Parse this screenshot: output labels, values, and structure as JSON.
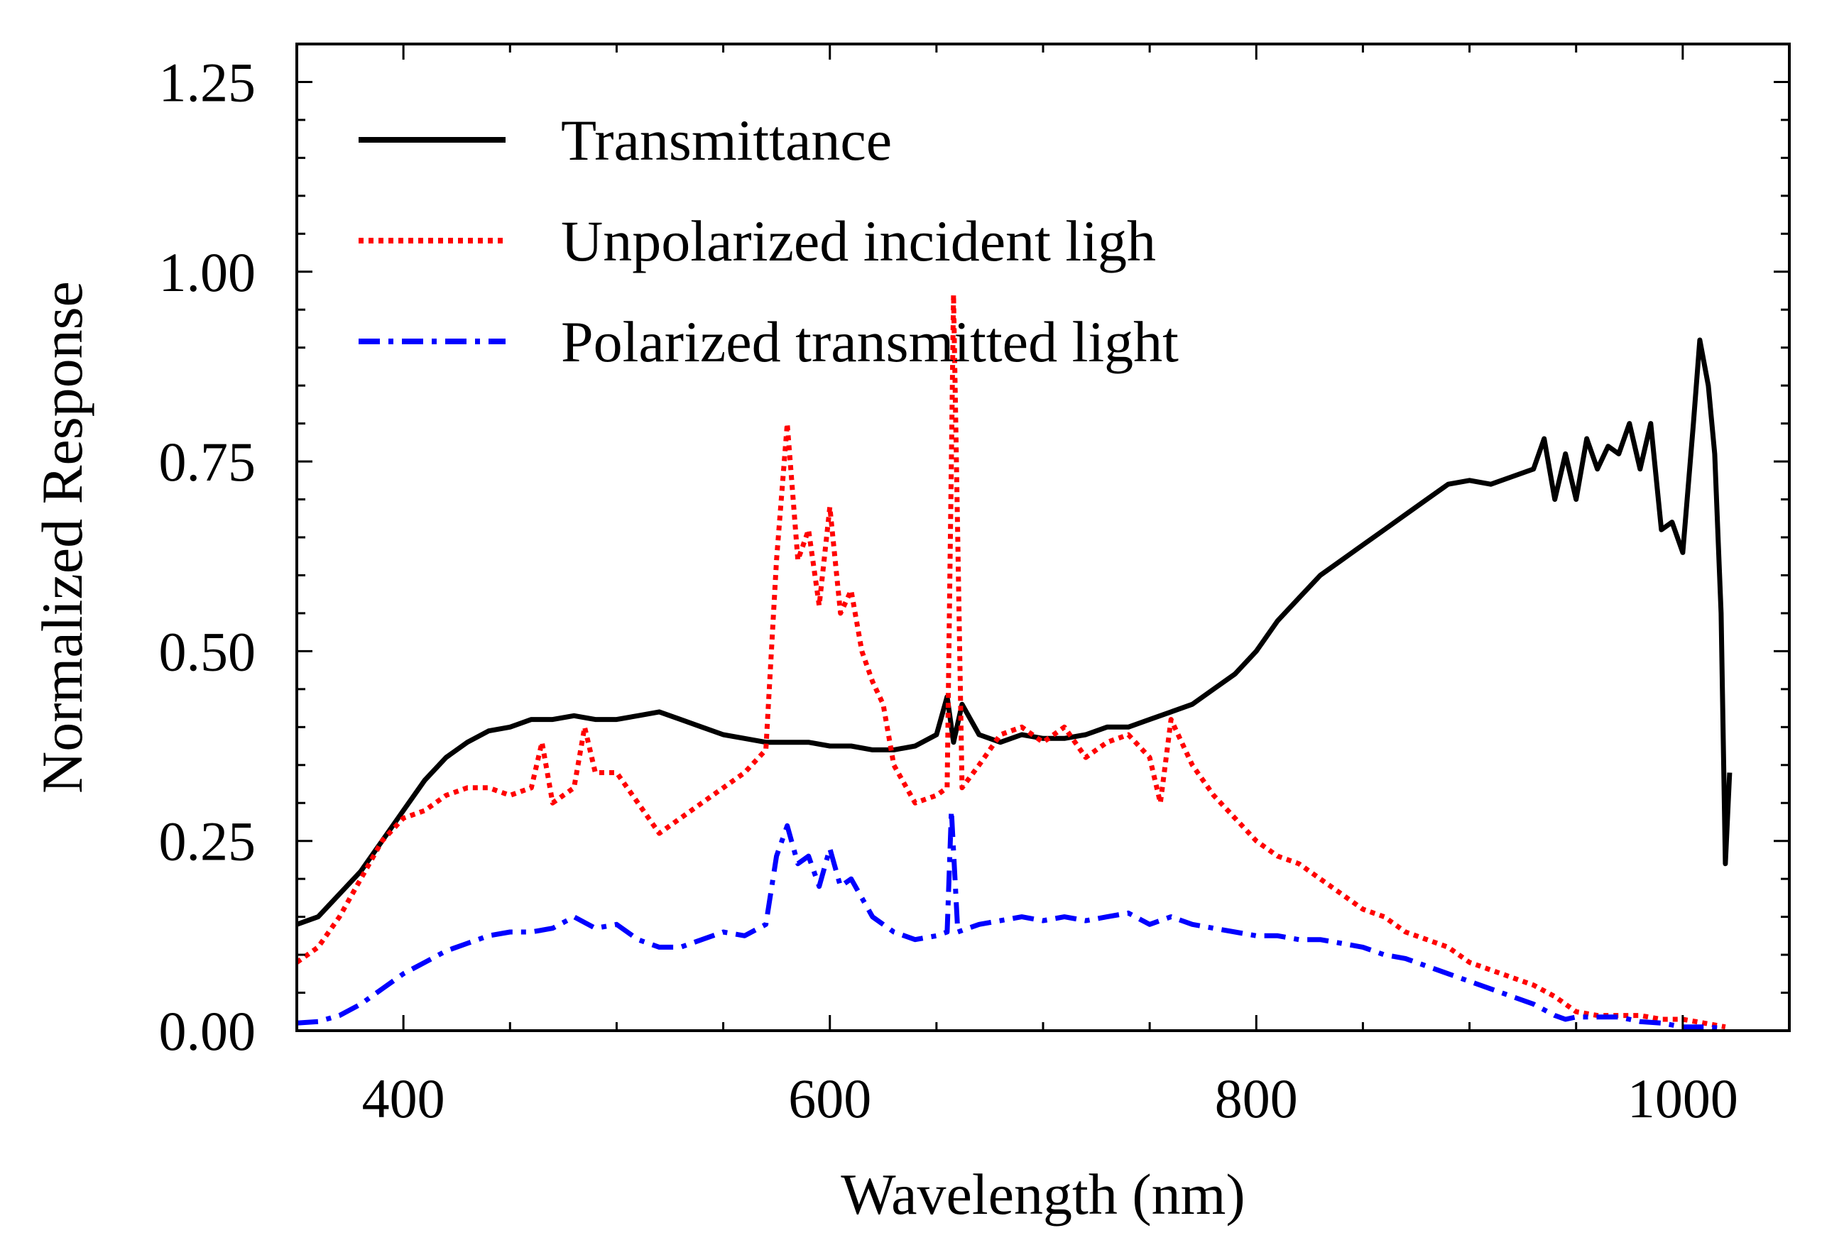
{
  "chart_data": {
    "type": "line",
    "title": "",
    "xlabel": "Wavelength (nm)",
    "ylabel": "Normalized Response",
    "xlim": [
      350,
      1050
    ],
    "ylim": [
      0,
      1.3
    ],
    "xticks": [
      400,
      600,
      800,
      1000
    ],
    "xtick_labels": [
      "400",
      "600",
      "800",
      "1000"
    ],
    "yticks": [
      0,
      0.25,
      0.5,
      0.75,
      1.0,
      1.25
    ],
    "ytick_labels": [
      "0.00",
      "0.25",
      "0.50",
      "0.75",
      "1.00",
      "1.25"
    ],
    "legend_position": "top-left",
    "grid": false,
    "series": [
      {
        "name": "Transmittance",
        "color": "#000000",
        "style": "solid",
        "x": [
          350,
          360,
          370,
          380,
          390,
          400,
          410,
          420,
          430,
          440,
          450,
          460,
          470,
          480,
          490,
          500,
          510,
          520,
          530,
          540,
          550,
          560,
          570,
          580,
          590,
          600,
          610,
          620,
          630,
          640,
          650,
          655,
          658,
          662,
          670,
          680,
          690,
          700,
          710,
          720,
          730,
          740,
          750,
          760,
          770,
          780,
          790,
          800,
          810,
          820,
          830,
          840,
          850,
          860,
          870,
          880,
          890,
          900,
          910,
          920,
          930,
          935,
          940,
          945,
          950,
          955,
          960,
          965,
          970,
          975,
          980,
          985,
          990,
          995,
          1000,
          1005,
          1008,
          1012,
          1015,
          1018,
          1020,
          1022
        ],
        "values": [
          0.14,
          0.15,
          0.18,
          0.21,
          0.25,
          0.29,
          0.33,
          0.36,
          0.38,
          0.395,
          0.4,
          0.41,
          0.41,
          0.415,
          0.41,
          0.41,
          0.415,
          0.42,
          0.41,
          0.4,
          0.39,
          0.385,
          0.38,
          0.38,
          0.38,
          0.375,
          0.375,
          0.37,
          0.37,
          0.375,
          0.39,
          0.44,
          0.38,
          0.43,
          0.39,
          0.38,
          0.39,
          0.385,
          0.385,
          0.39,
          0.4,
          0.4,
          0.41,
          0.42,
          0.43,
          0.45,
          0.47,
          0.5,
          0.54,
          0.57,
          0.6,
          0.62,
          0.64,
          0.66,
          0.68,
          0.7,
          0.72,
          0.725,
          0.72,
          0.73,
          0.74,
          0.78,
          0.7,
          0.76,
          0.7,
          0.78,
          0.74,
          0.77,
          0.76,
          0.8,
          0.74,
          0.8,
          0.66,
          0.67,
          0.63,
          0.8,
          0.91,
          0.85,
          0.76,
          0.55,
          0.22,
          0.34
        ]
      },
      {
        "name": "Unpolarized incident ligh",
        "color": "#ff0000",
        "style": "dotted",
        "x": [
          350,
          360,
          370,
          380,
          390,
          400,
          410,
          420,
          430,
          440,
          450,
          460,
          465,
          470,
          480,
          485,
          490,
          500,
          510,
          520,
          530,
          540,
          550,
          560,
          570,
          575,
          580,
          585,
          590,
          595,
          600,
          605,
          610,
          615,
          620,
          625,
          630,
          640,
          650,
          655,
          658,
          662,
          670,
          680,
          690,
          700,
          710,
          720,
          730,
          740,
          750,
          755,
          760,
          765,
          770,
          780,
          790,
          800,
          810,
          820,
          830,
          840,
          850,
          860,
          870,
          880,
          890,
          900,
          910,
          920,
          930,
          940,
          950,
          960,
          970,
          980,
          990,
          1000,
          1010,
          1020
        ],
        "values": [
          0.09,
          0.11,
          0.15,
          0.2,
          0.25,
          0.28,
          0.29,
          0.31,
          0.32,
          0.32,
          0.31,
          0.32,
          0.38,
          0.3,
          0.32,
          0.4,
          0.34,
          0.34,
          0.3,
          0.26,
          0.28,
          0.3,
          0.32,
          0.34,
          0.37,
          0.62,
          0.8,
          0.62,
          0.66,
          0.56,
          0.69,
          0.55,
          0.58,
          0.5,
          0.46,
          0.43,
          0.35,
          0.3,
          0.31,
          0.32,
          0.97,
          0.32,
          0.35,
          0.39,
          0.4,
          0.38,
          0.4,
          0.36,
          0.38,
          0.39,
          0.36,
          0.3,
          0.41,
          0.38,
          0.35,
          0.31,
          0.28,
          0.25,
          0.23,
          0.22,
          0.2,
          0.18,
          0.16,
          0.15,
          0.13,
          0.12,
          0.11,
          0.09,
          0.08,
          0.07,
          0.06,
          0.045,
          0.025,
          0.02,
          0.02,
          0.02,
          0.015,
          0.015,
          0.01,
          0.005
        ]
      },
      {
        "name": "Polarized transmitted light",
        "color": "#0000ff",
        "style": "dashdot",
        "x": [
          350,
          360,
          370,
          380,
          390,
          400,
          410,
          420,
          430,
          440,
          450,
          460,
          470,
          480,
          490,
          500,
          510,
          520,
          530,
          540,
          550,
          560,
          570,
          575,
          580,
          585,
          590,
          595,
          600,
          605,
          610,
          620,
          630,
          640,
          650,
          655,
          657,
          660,
          670,
          680,
          690,
          700,
          710,
          720,
          730,
          740,
          750,
          760,
          770,
          780,
          790,
          800,
          810,
          820,
          830,
          840,
          850,
          860,
          870,
          880,
          890,
          900,
          910,
          920,
          930,
          940,
          945,
          950,
          960,
          970,
          980,
          990,
          1000,
          1010,
          1020
        ],
        "values": [
          0.01,
          0.012,
          0.02,
          0.035,
          0.055,
          0.075,
          0.09,
          0.105,
          0.115,
          0.125,
          0.13,
          0.13,
          0.135,
          0.15,
          0.135,
          0.14,
          0.12,
          0.11,
          0.11,
          0.12,
          0.13,
          0.125,
          0.14,
          0.23,
          0.27,
          0.22,
          0.23,
          0.19,
          0.24,
          0.19,
          0.2,
          0.15,
          0.13,
          0.12,
          0.125,
          0.13,
          0.29,
          0.13,
          0.14,
          0.145,
          0.15,
          0.145,
          0.15,
          0.145,
          0.15,
          0.155,
          0.14,
          0.15,
          0.14,
          0.135,
          0.13,
          0.125,
          0.125,
          0.12,
          0.12,
          0.115,
          0.11,
          0.1,
          0.095,
          0.085,
          0.075,
          0.065,
          0.055,
          0.045,
          0.035,
          0.02,
          0.015,
          0.018,
          0.018,
          0.018,
          0.012,
          0.01,
          0.005,
          0.005,
          0.003
        ]
      }
    ]
  }
}
